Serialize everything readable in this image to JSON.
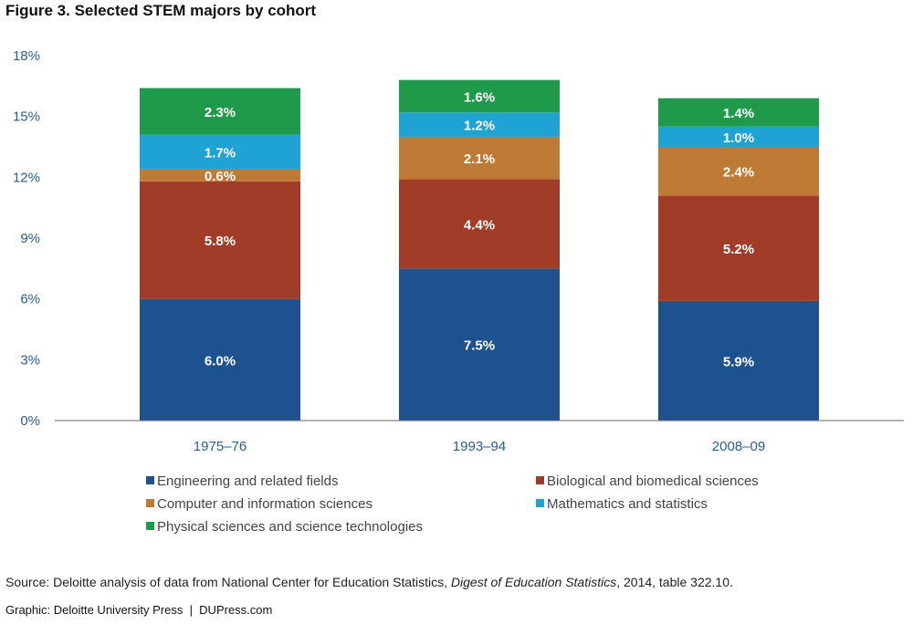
{
  "title": "Figure 3. Selected STEM majors by cohort",
  "source": {
    "prefix": "Source: Deloitte analysis of data from National Center for Education Statistics, ",
    "publication": "Digest of Education Statistics",
    "suffix": ", 2014, table 322.10."
  },
  "credit": "Graphic: Deloitte University Press  |  DUPress.com",
  "chart_data": {
    "type": "bar",
    "stacked": true,
    "categories": [
      "1975–76",
      "1993–94",
      "2008–09"
    ],
    "ylim": [
      0,
      18
    ],
    "yticks": [
      0,
      3,
      6,
      9,
      12,
      15,
      18
    ],
    "ytick_labels": [
      "0%",
      "3%",
      "6%",
      "9%",
      "12%",
      "15%",
      "18%"
    ],
    "grid": false,
    "legend_position": "bottom",
    "series": [
      {
        "name": "Engineering and related fields",
        "values": [
          6.0,
          7.5,
          5.9
        ],
        "labels": [
          "6.0%",
          "7.5%",
          "5.9%"
        ],
        "color": "#1d5190"
      },
      {
        "name": "Biological and biomedical sciences",
        "values": [
          5.8,
          4.4,
          5.2
        ],
        "labels": [
          "5.8%",
          "4.4%",
          "5.2%"
        ],
        "color": "#a03c28"
      },
      {
        "name": "Computer and information sciences",
        "values": [
          0.6,
          2.1,
          2.4
        ],
        "labels": [
          "0.6%",
          "2.1%",
          "2.4%"
        ],
        "color": "#bf7a36"
      },
      {
        "name": "Mathematics and statistics",
        "values": [
          1.7,
          1.2,
          1.0
        ],
        "labels": [
          "1.7%",
          "1.2%",
          "1.0%"
        ],
        "color": "#1fa3d4"
      },
      {
        "name": "Physical sciences and science technologies",
        "values": [
          2.3,
          1.6,
          1.4
        ],
        "labels": [
          "2.3%",
          "1.6%",
          "1.4%"
        ],
        "color": "#1f9a4a"
      }
    ]
  }
}
